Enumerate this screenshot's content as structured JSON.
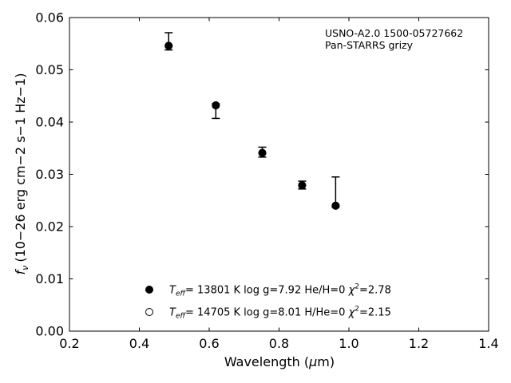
{
  "chart_data": {
    "type": "scatter",
    "xlabel_main": "Wavelength (",
    "xlabel_mu": "μ",
    "xlabel_unit": "m)",
    "ylabel_text": "(10−26 erg cm−2 s−1 Hz−1)",
    "ylabel_f": "f",
    "ylabel_sub": "ν",
    "annotation_line1": "USNO-A2.0 1500-05727662",
    "annotation_line2": "Pan-STARRS grizy",
    "xlim": [
      0.2,
      1.4
    ],
    "ylim": [
      0.0,
      0.06
    ],
    "x_ticks": [
      "0.2",
      "0.4",
      "0.6",
      "0.8",
      "1.0",
      "1.2",
      "1.4"
    ],
    "y_ticks": [
      "0.00",
      "0.01",
      "0.02",
      "0.03",
      "0.04",
      "0.05",
      "0.06"
    ],
    "grid": false,
    "legend_position": "bottom-center",
    "observed": {
      "x": [
        0.484,
        0.619,
        0.752,
        0.866,
        0.962
      ],
      "y": [
        0.0547,
        0.0432,
        0.0341,
        0.0278,
        0.024
      ],
      "err_low": [
        0.0009,
        0.0025,
        0.0008,
        0.0006,
        0.0003
      ],
      "err_high": [
        0.0024,
        0.0003,
        0.0011,
        0.0009,
        0.0055
      ]
    },
    "model_he": {
      "x": [
        0.484,
        0.619,
        0.752,
        0.866,
        0.962
      ],
      "y": [
        0.0546,
        0.0432,
        0.0341,
        0.0279,
        0.024
      ]
    },
    "model_h": {
      "x": [
        0.484,
        0.619,
        0.752,
        0.866,
        0.962
      ],
      "y": [
        0.0546,
        0.0432,
        0.0341,
        0.0279,
        0.024
      ]
    },
    "legend": [
      {
        "marker": "filled-circle",
        "T": "T",
        "T_sub": "eff",
        "text": "= 13801 K  log g=7.92  He/H=0  ",
        "chi": "χ",
        "chi_sup": "2",
        "chi_val": "=2.78"
      },
      {
        "marker": "open-circle",
        "T": "T",
        "T_sub": "eff",
        "text": "= 14705 K  log g=8.01  H/He=0  ",
        "chi": "χ",
        "chi_sup": "2",
        "chi_val": "=2.15"
      }
    ],
    "colors": {
      "marker": "#000000",
      "axes": "#000000",
      "background": "#ffffff"
    }
  }
}
